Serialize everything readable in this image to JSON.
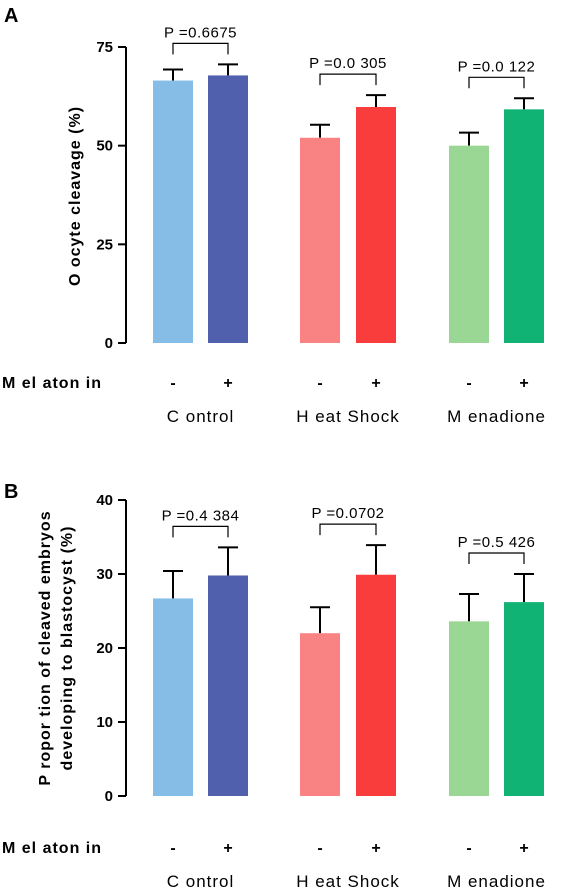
{
  "chart_data": [
    {
      "panel": "A",
      "type": "bar",
      "ylabel": "O ocyte cleavage (%)",
      "ylim": [
        0,
        75
      ],
      "yticks": [
        "0",
        "25",
        "50",
        "75"
      ],
      "ytick_values": [
        0,
        25,
        50,
        75
      ],
      "row_label": "M el aton in",
      "groups": [
        {
          "label": "C ontrol",
          "bars": [
            {
              "sign": "-",
              "value": 66.5,
              "error": 2.8,
              "color": "#86bde6"
            },
            {
              "sign": "+",
              "value": 67.8,
              "error": 2.8,
              "color": "#5060ad"
            }
          ],
          "pvalue": "P =0.6675"
        },
        {
          "label": "H eat Shock",
          "bars": [
            {
              "sign": "-",
              "value": 52.0,
              "error": 3.3,
              "color": "#f98282"
            },
            {
              "sign": "+",
              "value": 59.8,
              "error": 3.0,
              "color": "#f93c3c"
            }
          ],
          "pvalue": "P =0.0 305"
        },
        {
          "label": "M enadione",
          "bars": [
            {
              "sign": "-",
              "value": 50.0,
              "error": 3.3,
              "color": "#9ad694"
            },
            {
              "sign": "+",
              "value": 59.2,
              "error": 2.8,
              "color": "#10b374"
            }
          ],
          "pvalue": "P =0.0 122"
        }
      ]
    },
    {
      "panel": "B",
      "type": "bar",
      "ylabel": "P ropor tion of cleaved embryos developing to blastocyst (%)",
      "ylabel_line1": "P ropor tion of cleaved embryos",
      "ylabel_line2": "developing to blastocyst (%)",
      "ylim": [
        0,
        40
      ],
      "yticks": [
        "0",
        "10",
        "20",
        "30",
        "40"
      ],
      "ytick_values": [
        0,
        10,
        20,
        30,
        40
      ],
      "row_label": "M el aton in",
      "groups": [
        {
          "label": "C ontrol",
          "bars": [
            {
              "sign": "-",
              "value": 26.7,
              "error": 3.7,
              "color": "#86bde6"
            },
            {
              "sign": "+",
              "value": 29.8,
              "error": 3.8,
              "color": "#5060ad"
            }
          ],
          "pvalue": "P =0.4 384"
        },
        {
          "label": "H eat Shock",
          "bars": [
            {
              "sign": "-",
              "value": 22.0,
              "error": 3.5,
              "color": "#f98282"
            },
            {
              "sign": "+",
              "value": 29.9,
              "error": 4.0,
              "color": "#f93c3c"
            }
          ],
          "pvalue": "P =0.0702"
        },
        {
          "label": "M enadione",
          "bars": [
            {
              "sign": "-",
              "value": 23.6,
              "error": 3.7,
              "color": "#9ad694"
            },
            {
              "sign": "+",
              "value": 26.2,
              "error": 3.8,
              "color": "#10b374"
            }
          ],
          "pvalue": "P =0.5 426"
        }
      ]
    }
  ]
}
